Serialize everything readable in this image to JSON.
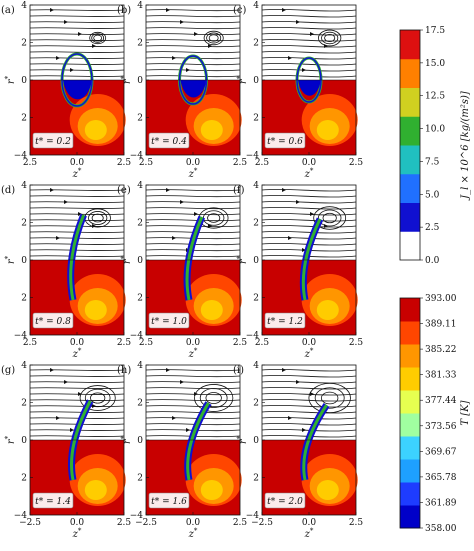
{
  "chart_data": {
    "type": "heatmap",
    "panels": [
      {
        "label": "(a)",
        "time_label": "t* = 0.2"
      },
      {
        "label": "(b)",
        "time_label": "t* = 0.4"
      },
      {
        "label": "(c)",
        "time_label": "t* = 0.6"
      },
      {
        "label": "(d)",
        "time_label": "t* = 0.8"
      },
      {
        "label": "(e)",
        "time_label": "t* = 1.0"
      },
      {
        "label": "(f)",
        "time_label": "t* = 1.2"
      },
      {
        "label": "(g)",
        "time_label": "t* = 1.4"
      },
      {
        "label": "(h)",
        "time_label": "t* = 1.6"
      },
      {
        "label": "(i)",
        "time_label": "t* = 2.0"
      }
    ],
    "xlabel": "z*",
    "ylabel": "r*",
    "xlim": [
      -2.5,
      2.5
    ],
    "ylim": [
      -4,
      4
    ],
    "xticks": [
      "2.5",
      "0.0",
      "2.5"
    ],
    "xticks_bottom_row": [
      "−2.5",
      "0.0",
      "2.5"
    ],
    "yticks": [
      "4",
      "2",
      "0",
      "2",
      "−4"
    ],
    "colorbars": [
      {
        "label": "J_l × 10^6 [kg/(m²s)]",
        "range": [
          0.0,
          17.5
        ],
        "ticks": [
          "17.5",
          "15.0",
          "12.5",
          "10.0",
          "7.5",
          "5.0",
          "2.5",
          "0.0"
        ],
        "colormap": [
          "#ffffff",
          "#1010d0",
          "#2070ff",
          "#20c0c0",
          "#30b030",
          "#d0d020",
          "#ff8000",
          "#dd1010"
        ]
      },
      {
        "label": "T [K]",
        "range": [
          358.0,
          393.0
        ],
        "ticks": [
          "393.00",
          "389.11",
          "385.22",
          "381.33",
          "377.44",
          "373.56",
          "369.67",
          "365.78",
          "361.89",
          "358.00"
        ],
        "colormap": [
          "#0000c8",
          "#1e3cff",
          "#1ea0ff",
          "#3cd2ff",
          "#a0ffa0",
          "#e6ff50",
          "#ffcc00",
          "#ff9600",
          "#ff4600",
          "#c80000"
        ]
      }
    ]
  }
}
